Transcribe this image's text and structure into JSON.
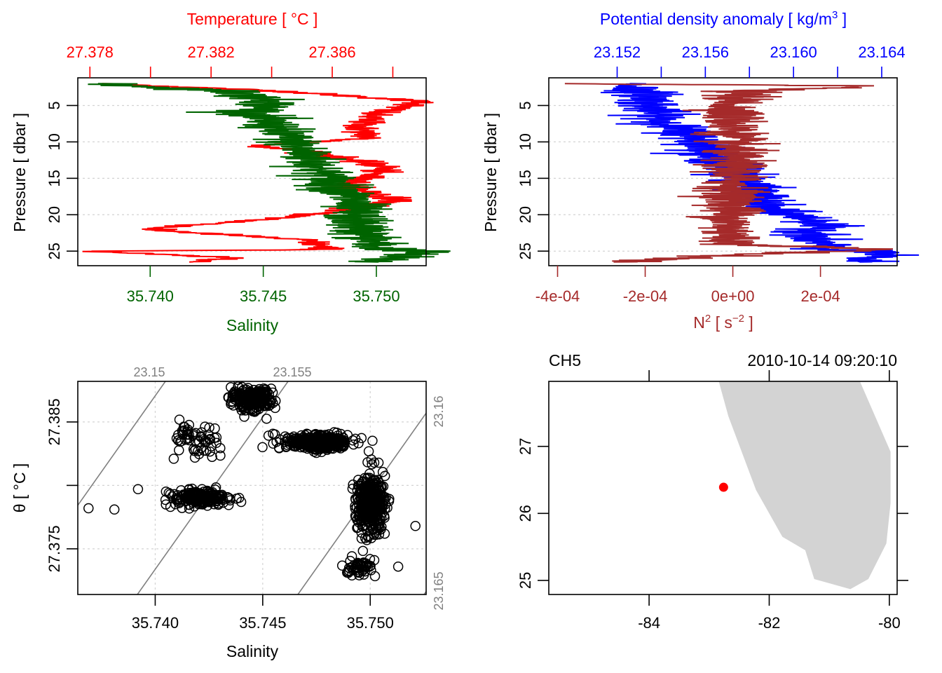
{
  "colors": {
    "temperature": "#ff0000",
    "salinity": "#006400",
    "density": "#0000ff",
    "n2": "#a52a2a",
    "grid": "#d3d3d3",
    "isopycnal": "#808080",
    "land": "#d3d3d3",
    "station": "#ff0000",
    "axis": "#000000"
  },
  "chart_data": [
    {
      "id": "profile-ts",
      "type": "line",
      "title": "Temperature [ °C ]",
      "top_axis": {
        "label": "Temperature [ °C ]",
        "ticks": [
          27.378,
          27.38,
          27.382,
          27.384,
          27.386,
          27.388
        ],
        "tick_labels": [
          "27.378",
          "",
          "27.382",
          "",
          "27.386",
          ""
        ],
        "range": [
          27.3776,
          27.3891
        ]
      },
      "bottom_axis": {
        "label": "Salinity",
        "ticks": [
          35.74,
          35.745,
          35.75
        ],
        "tick_labels": [
          "35.740",
          "35.745",
          "35.750"
        ],
        "range": [
          35.7368,
          35.7522
        ]
      },
      "y_axis": {
        "label": "Pressure [ dbar ]",
        "ticks": [
          5,
          10,
          15,
          20,
          25
        ],
        "tick_labels": [
          "5",
          "10",
          "15",
          "20",
          "25"
        ],
        "range": [
          27.0,
          1.2
        ],
        "reversed": true
      },
      "grid": "horizontal-dotted",
      "series": [
        {
          "name": "Temperature",
          "axis": "top",
          "anchors": [
            [
              2.0,
              27.3785
            ],
            [
              3.0,
              27.3842
            ],
            [
              4.0,
              27.3876
            ],
            [
              4.5,
              27.3891
            ],
            [
              6.0,
              27.3874
            ],
            [
              8.0,
              27.3869
            ],
            [
              9.5,
              27.3872
            ],
            [
              10.5,
              27.3836
            ],
            [
              11.5,
              27.3855
            ],
            [
              13.5,
              27.3878
            ],
            [
              16.0,
              27.3865
            ],
            [
              18.0,
              27.3882
            ],
            [
              19.5,
              27.3862
            ],
            [
              20.5,
              27.3842
            ],
            [
              22.0,
              27.3798
            ],
            [
              23.5,
              27.3852
            ],
            [
              24.8,
              27.3858
            ],
            [
              25.0,
              27.378
            ],
            [
              26.0,
              27.383
            ],
            [
              26.5,
              27.3813
            ]
          ]
        },
        {
          "name": "Salinity",
          "axis": "bottom",
          "anchors": [
            [
              2.0,
              35.7375
            ],
            [
              3.0,
              35.7435
            ],
            [
              4.5,
              35.7455
            ],
            [
              6.0,
              35.7445
            ],
            [
              8.0,
              35.7455
            ],
            [
              10.0,
              35.7462
            ],
            [
              12.0,
              35.747
            ],
            [
              15.0,
              35.7478
            ],
            [
              18.0,
              35.7489
            ],
            [
              20.0,
              35.749
            ],
            [
              22.0,
              35.7493
            ],
            [
              24.5,
              35.75
            ],
            [
              25.0,
              35.752
            ],
            [
              26.5,
              35.7498
            ]
          ]
        }
      ]
    },
    {
      "id": "profile-density-n2",
      "type": "line",
      "top_axis": {
        "label": "Potential density anomaly [ kg/m³ ]",
        "ticks": [
          23.152,
          23.154,
          23.156,
          23.158,
          23.16,
          23.162,
          23.164
        ],
        "tick_labels": [
          "23.152",
          "",
          "23.156",
          "",
          "23.160",
          "",
          "23.164"
        ],
        "range": [
          23.1489,
          23.1647
        ]
      },
      "bottom_axis": {
        "label": "N² [ s⁻² ]",
        "ticks": [
          -0.0004,
          -0.0002,
          0.0,
          0.0002
        ],
        "tick_labels": [
          "-4e-04",
          "-2e-04",
          "0e+00",
          "2e-04"
        ],
        "range": [
          -0.00042,
          0.000375
        ]
      },
      "y_axis": {
        "label": "Pressure [ dbar ]",
        "ticks": [
          5,
          10,
          15,
          20,
          25
        ],
        "tick_labels": [
          "5",
          "10",
          "15",
          "20",
          "25"
        ],
        "range": [
          27.0,
          1.2
        ],
        "reversed": true
      },
      "grid": "horizontal-dotted",
      "series": [
        {
          "name": "Potential density anomaly",
          "axis": "top",
          "anchors": [
            [
              2.0,
              23.1525
            ],
            [
              3.5,
              23.1534
            ],
            [
              5.0,
              23.1535
            ],
            [
              7.0,
              23.154
            ],
            [
              9.0,
              23.1552
            ],
            [
              10.5,
              23.1562
            ],
            [
              12.0,
              23.1564
            ],
            [
              14.0,
              23.1574
            ],
            [
              16.0,
              23.158
            ],
            [
              19.0,
              23.1586
            ],
            [
              21.0,
              23.1613
            ],
            [
              23.0,
              23.1608
            ],
            [
              24.8,
              23.1615
            ],
            [
              25.2,
              23.164
            ],
            [
              26.5,
              23.163
            ]
          ]
        },
        {
          "name": "N2",
          "axis": "bottom",
          "anchors": [
            [
              2.0,
              -0.00038
            ],
            [
              2.3,
              0.00034
            ],
            [
              3.0,
              2e-05
            ],
            [
              5.0,
              0.0
            ],
            [
              8.0,
              0.0
            ],
            [
              11.0,
              0.0
            ],
            [
              14.0,
              0.0
            ],
            [
              18.0,
              0.0
            ],
            [
              21.0,
              -1e-05
            ],
            [
              24.0,
              0.0
            ],
            [
              24.8,
              0.00035
            ],
            [
              25.5,
              0.0
            ],
            [
              26.5,
              -0.00025
            ]
          ]
        }
      ]
    },
    {
      "id": "ts-diagram",
      "type": "scatter",
      "xlabel": "Salinity",
      "ylabel": "θ [ °C ]",
      "x_axis": {
        "ticks": [
          35.74,
          35.745,
          35.75
        ],
        "tick_labels": [
          "35.740",
          "35.745",
          "35.750"
        ],
        "range": [
          35.7364,
          35.7526
        ]
      },
      "y_axis": {
        "ticks": [
          27.375,
          27.38,
          27.385
        ],
        "tick_labels": [
          "27.375",
          "",
          "27.385"
        ],
        "range": [
          27.3714,
          27.3882
        ]
      },
      "isopycnals": [
        {
          "label": "23.15",
          "sigma": 23.15,
          "side": "top"
        },
        {
          "label": "23.155",
          "sigma": 23.155,
          "side": "top"
        },
        {
          "label": "23.16",
          "sigma": 23.16,
          "side": "right"
        },
        {
          "label": "23.165",
          "sigma": 23.165,
          "side": "right"
        }
      ],
      "clusters": [
        {
          "center": [
            35.7445,
            27.3868
          ],
          "spread": [
            0.0008,
            0.0008
          ],
          "count": 220
        },
        {
          "center": [
            35.7475,
            27.3834
          ],
          "spread": [
            0.0014,
            0.0005
          ],
          "count": 320
        },
        {
          "center": [
            35.75,
            27.3785
          ],
          "spread": [
            0.0006,
            0.002
          ],
          "count": 330
        },
        {
          "center": [
            35.742,
            27.379
          ],
          "spread": [
            0.0013,
            0.0005
          ],
          "count": 200
        },
        {
          "center": [
            35.742,
            27.3835
          ],
          "spread": [
            0.0012,
            0.0012
          ],
          "count": 60
        },
        {
          "center": [
            35.7495,
            27.3735
          ],
          "spread": [
            0.0007,
            0.0006
          ],
          "count": 50
        }
      ],
      "outliers": [
        [
          35.7369,
          27.3782
        ],
        [
          35.7381,
          27.3781
        ],
        [
          35.7521,
          27.3768
        ],
        [
          35.7513,
          27.3736
        ],
        [
          35.7392,
          27.3797
        ]
      ],
      "grid": "dotted"
    },
    {
      "id": "station-map",
      "type": "map",
      "title_left": "CH5",
      "title_right": "2010-10-14 09:20:10",
      "x_axis": {
        "ticks": [
          -84,
          -82,
          -80
        ],
        "tick_labels": [
          "-84",
          "-82",
          "-80"
        ],
        "range": [
          -85.67,
          -79.87
        ]
      },
      "y_axis": {
        "ticks": [
          25,
          26,
          27
        ],
        "tick_labels": [
          "25",
          "26",
          "27"
        ],
        "range": [
          24.79,
          27.97
        ]
      },
      "station": {
        "lon": -82.76,
        "lat": 26.39
      },
      "coastline": [
        [
          -82.84,
          27.97
        ],
        [
          -82.68,
          27.45
        ],
        [
          -82.22,
          26.35
        ],
        [
          -81.78,
          25.65
        ],
        [
          -81.4,
          25.45
        ],
        [
          -81.25,
          25.02
        ],
        [
          -80.65,
          24.87
        ],
        [
          -80.35,
          25.02
        ],
        [
          -80.05,
          25.55
        ],
        [
          -79.98,
          26.15
        ],
        [
          -79.98,
          26.92
        ],
        [
          -80.49,
          27.97
        ]
      ]
    }
  ]
}
